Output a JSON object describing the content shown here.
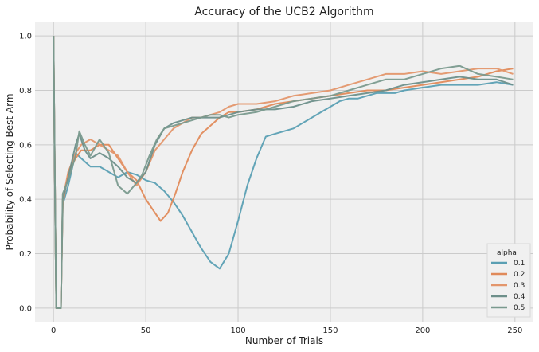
{
  "chart_data": {
    "type": "line",
    "title": "Accuracy of the UCB2 Algorithm",
    "xlabel": "Number of Trials",
    "ylabel": "Probability of Selecting Best Arm",
    "xlim": [
      -10,
      260
    ],
    "ylim": [
      -0.05,
      1.05
    ],
    "xticks": [
      0,
      50,
      100,
      150,
      200,
      250
    ],
    "yticks": [
      0.0,
      0.2,
      0.4,
      0.6,
      0.8,
      1.0
    ],
    "ytick_labels": [
      "0.0",
      "0.2",
      "0.4",
      "0.6",
      "0.8",
      "1.0"
    ],
    "grid": true,
    "legend": {
      "title": "alpha",
      "placement": "lower-right"
    },
    "background": "#f0f0f0",
    "grid_color": "#cbcbcb",
    "series": [
      {
        "name": "0.1",
        "color": "#5a9fb3",
        "points": [
          [
            0,
            1.0
          ],
          [
            1,
            0.3
          ],
          [
            1.5,
            0.0
          ],
          [
            4,
            0.0
          ],
          [
            5,
            0.38
          ],
          [
            8,
            0.45
          ],
          [
            12,
            0.57
          ],
          [
            15,
            0.55
          ],
          [
            20,
            0.52
          ],
          [
            25,
            0.52
          ],
          [
            30,
            0.5
          ],
          [
            35,
            0.48
          ],
          [
            40,
            0.5
          ],
          [
            45,
            0.49
          ],
          [
            50,
            0.47
          ],
          [
            55,
            0.46
          ],
          [
            60,
            0.43
          ],
          [
            65,
            0.39
          ],
          [
            70,
            0.34
          ],
          [
            75,
            0.28
          ],
          [
            80,
            0.22
          ],
          [
            85,
            0.17
          ],
          [
            90,
            0.145
          ],
          [
            95,
            0.2
          ],
          [
            100,
            0.32
          ],
          [
            105,
            0.45
          ],
          [
            110,
            0.55
          ],
          [
            115,
            0.63
          ],
          [
            120,
            0.64
          ],
          [
            130,
            0.66
          ],
          [
            140,
            0.7
          ],
          [
            145,
            0.72
          ],
          [
            150,
            0.74
          ],
          [
            155,
            0.76
          ],
          [
            160,
            0.77
          ],
          [
            165,
            0.77
          ],
          [
            170,
            0.78
          ],
          [
            175,
            0.79
          ],
          [
            180,
            0.79
          ],
          [
            185,
            0.79
          ],
          [
            190,
            0.8
          ],
          [
            200,
            0.81
          ],
          [
            210,
            0.82
          ],
          [
            220,
            0.82
          ],
          [
            230,
            0.82
          ],
          [
            240,
            0.83
          ],
          [
            249,
            0.82
          ]
        ]
      },
      {
        "name": "0.2",
        "color": "#e08a5a",
        "points": [
          [
            0,
            1.0
          ],
          [
            1,
            0.3
          ],
          [
            1.5,
            0.0
          ],
          [
            4,
            0.0
          ],
          [
            5,
            0.38
          ],
          [
            8,
            0.5
          ],
          [
            12,
            0.55
          ],
          [
            15,
            0.58
          ],
          [
            20,
            0.58
          ],
          [
            25,
            0.6
          ],
          [
            30,
            0.6
          ],
          [
            35,
            0.55
          ],
          [
            40,
            0.5
          ],
          [
            45,
            0.47
          ],
          [
            50,
            0.4
          ],
          [
            55,
            0.35
          ],
          [
            58,
            0.32
          ],
          [
            62,
            0.35
          ],
          [
            66,
            0.42
          ],
          [
            70,
            0.5
          ],
          [
            75,
            0.58
          ],
          [
            80,
            0.64
          ],
          [
            85,
            0.67
          ],
          [
            90,
            0.7
          ],
          [
            95,
            0.72
          ],
          [
            100,
            0.72
          ],
          [
            110,
            0.73
          ],
          [
            120,
            0.75
          ],
          [
            130,
            0.76
          ],
          [
            140,
            0.77
          ],
          [
            150,
            0.78
          ],
          [
            160,
            0.79
          ],
          [
            170,
            0.8
          ],
          [
            180,
            0.8
          ],
          [
            190,
            0.81
          ],
          [
            200,
            0.82
          ],
          [
            210,
            0.83
          ],
          [
            220,
            0.84
          ],
          [
            230,
            0.85
          ],
          [
            240,
            0.87
          ],
          [
            249,
            0.88
          ]
        ]
      },
      {
        "name": "0.3",
        "color": "#e3966c",
        "points": [
          [
            0,
            1.0
          ],
          [
            1,
            0.3
          ],
          [
            1.5,
            0.0
          ],
          [
            4,
            0.0
          ],
          [
            5,
            0.4
          ],
          [
            8,
            0.5
          ],
          [
            12,
            0.57
          ],
          [
            15,
            0.6
          ],
          [
            20,
            0.62
          ],
          [
            25,
            0.6
          ],
          [
            30,
            0.58
          ],
          [
            35,
            0.56
          ],
          [
            40,
            0.5
          ],
          [
            45,
            0.45
          ],
          [
            50,
            0.5
          ],
          [
            55,
            0.58
          ],
          [
            60,
            0.62
          ],
          [
            65,
            0.66
          ],
          [
            70,
            0.68
          ],
          [
            75,
            0.7
          ],
          [
            80,
            0.7
          ],
          [
            85,
            0.71
          ],
          [
            90,
            0.72
          ],
          [
            95,
            0.74
          ],
          [
            100,
            0.75
          ],
          [
            110,
            0.75
          ],
          [
            120,
            0.76
          ],
          [
            130,
            0.78
          ],
          [
            140,
            0.79
          ],
          [
            150,
            0.8
          ],
          [
            160,
            0.82
          ],
          [
            170,
            0.84
          ],
          [
            180,
            0.86
          ],
          [
            190,
            0.86
          ],
          [
            200,
            0.87
          ],
          [
            210,
            0.86
          ],
          [
            220,
            0.87
          ],
          [
            230,
            0.88
          ],
          [
            240,
            0.88
          ],
          [
            249,
            0.86
          ]
        ]
      },
      {
        "name": "0.4",
        "color": "#6d8f8a",
        "points": [
          [
            0,
            1.0
          ],
          [
            1,
            0.3
          ],
          [
            1.5,
            0.0
          ],
          [
            4,
            0.0
          ],
          [
            5,
            0.4
          ],
          [
            8,
            0.48
          ],
          [
            12,
            0.6
          ],
          [
            14,
            0.64
          ],
          [
            17,
            0.58
          ],
          [
            20,
            0.55
          ],
          [
            25,
            0.57
          ],
          [
            30,
            0.55
          ],
          [
            35,
            0.52
          ],
          [
            40,
            0.48
          ],
          [
            45,
            0.46
          ],
          [
            50,
            0.5
          ],
          [
            55,
            0.6
          ],
          [
            60,
            0.66
          ],
          [
            65,
            0.68
          ],
          [
            70,
            0.69
          ],
          [
            75,
            0.7
          ],
          [
            80,
            0.7
          ],
          [
            85,
            0.7
          ],
          [
            90,
            0.7
          ],
          [
            95,
            0.71
          ],
          [
            100,
            0.72
          ],
          [
            110,
            0.73
          ],
          [
            120,
            0.73
          ],
          [
            130,
            0.74
          ],
          [
            140,
            0.76
          ],
          [
            150,
            0.77
          ],
          [
            160,
            0.78
          ],
          [
            170,
            0.79
          ],
          [
            180,
            0.8
          ],
          [
            190,
            0.82
          ],
          [
            200,
            0.83
          ],
          [
            210,
            0.84
          ],
          [
            220,
            0.85
          ],
          [
            230,
            0.84
          ],
          [
            240,
            0.84
          ],
          [
            249,
            0.82
          ]
        ]
      },
      {
        "name": "0.5",
        "color": "#7a9a8e",
        "points": [
          [
            0,
            1.0
          ],
          [
            1,
            0.3
          ],
          [
            1.5,
            0.0
          ],
          [
            4,
            0.0
          ],
          [
            5,
            0.42
          ],
          [
            8,
            0.47
          ],
          [
            12,
            0.56
          ],
          [
            14,
            0.65
          ],
          [
            17,
            0.6
          ],
          [
            20,
            0.56
          ],
          [
            25,
            0.62
          ],
          [
            30,
            0.57
          ],
          [
            35,
            0.45
          ],
          [
            40,
            0.42
          ],
          [
            45,
            0.46
          ],
          [
            48,
            0.49
          ],
          [
            52,
            0.56
          ],
          [
            56,
            0.62
          ],
          [
            60,
            0.66
          ],
          [
            65,
            0.67
          ],
          [
            70,
            0.68
          ],
          [
            75,
            0.69
          ],
          [
            80,
            0.7
          ],
          [
            85,
            0.71
          ],
          [
            90,
            0.71
          ],
          [
            95,
            0.7
          ],
          [
            100,
            0.71
          ],
          [
            110,
            0.72
          ],
          [
            120,
            0.74
          ],
          [
            130,
            0.76
          ],
          [
            140,
            0.77
          ],
          [
            150,
            0.78
          ],
          [
            160,
            0.8
          ],
          [
            170,
            0.82
          ],
          [
            180,
            0.84
          ],
          [
            190,
            0.84
          ],
          [
            200,
            0.86
          ],
          [
            210,
            0.88
          ],
          [
            220,
            0.89
          ],
          [
            230,
            0.86
          ],
          [
            240,
            0.85
          ],
          [
            249,
            0.84
          ]
        ]
      }
    ]
  }
}
